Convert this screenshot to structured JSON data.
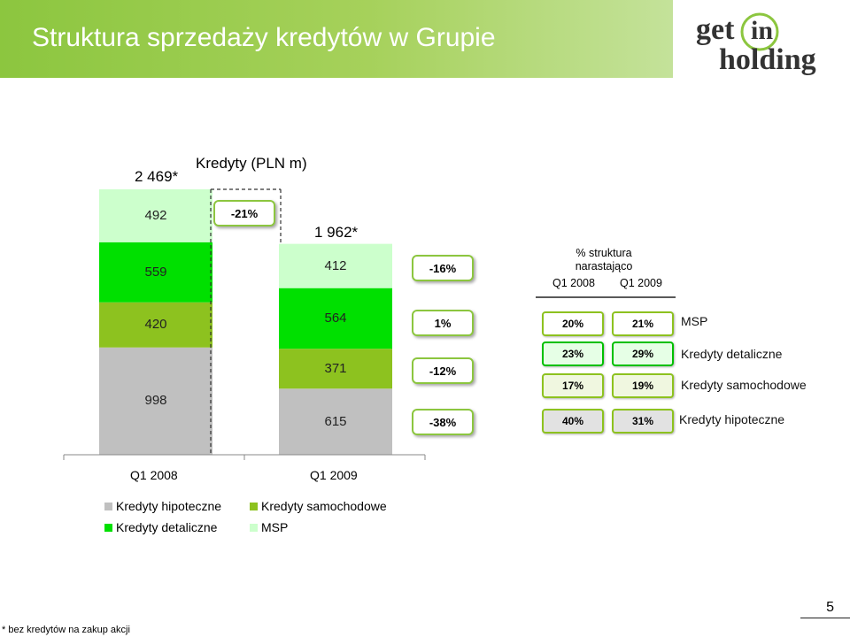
{
  "header": {
    "title": "Struktura sprzedaży kredytów w Grupie"
  },
  "logo": {
    "line1": "get",
    "line1b": "in",
    "line2": "holding"
  },
  "colors": {
    "hipoteczne": "#c0c0c0",
    "samochodowe": "#8dc21f",
    "detaliczne": "#00e000",
    "msp": "#ccffcc",
    "accent": "#8cc63f"
  },
  "chart_data": {
    "type": "bar",
    "stacked": true,
    "title": "Kredyty (PLN m)",
    "categories": [
      "Q1 2008",
      "Q1 2009"
    ],
    "series": [
      {
        "name": "Kredyty hipoteczne",
        "values": [
          998,
          615
        ]
      },
      {
        "name": "Kredyty samochodowe",
        "values": [
          420,
          371
        ]
      },
      {
        "name": "Kredyty detaliczne",
        "values": [
          559,
          564
        ]
      },
      {
        "name": "MSP",
        "values": [
          492,
          412
        ]
      }
    ],
    "totals": [
      "2 469*",
      "1 962*"
    ],
    "total_change": "-21%",
    "series_changes": [
      "-38%",
      "-12%",
      "1%",
      "-16%"
    ],
    "legend": [
      "Kredyty hipoteczne",
      "Kredyty samochodowe",
      "Kredyty detaliczne",
      "MSP"
    ]
  },
  "structure": {
    "heading": [
      "% struktura",
      "narastająco"
    ],
    "columns": [
      "Q1 2008",
      "Q1 2009"
    ],
    "rows": [
      {
        "name": "MSP",
        "q1_2008": "20%",
        "q1_2009": "21%"
      },
      {
        "name": "Kredyty detaliczne",
        "q1_2008": "23%",
        "q1_2009": "29%"
      },
      {
        "name": "Kredyty samochodowe",
        "q1_2008": "17%",
        "q1_2009": "19%"
      },
      {
        "name": "Kredyty hipoteczne",
        "q1_2008": "40%",
        "q1_2009": "31%"
      }
    ]
  },
  "footnote": "* bez kredytów na zakup akcji",
  "page_number": "5"
}
